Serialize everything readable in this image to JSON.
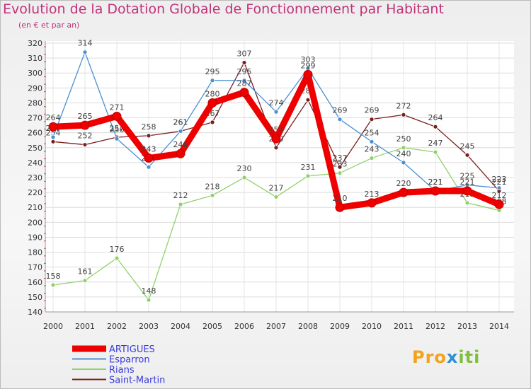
{
  "chart_data": {
    "type": "line",
    "title": "Evolution de la Dotation Globale de Fonctionnement par Habitant",
    "subtitle": "(en € et par an)",
    "xlabel": "",
    "ylabel": "",
    "ylim": [
      140,
      320
    ],
    "yticks": [
      140,
      150,
      160,
      170,
      180,
      190,
      200,
      210,
      220,
      230,
      240,
      250,
      260,
      270,
      280,
      290,
      300,
      310,
      320
    ],
    "categories": [
      "2000",
      "2001",
      "2002",
      "2003",
      "2004",
      "2005",
      "2006",
      "2007",
      "2008",
      "2009",
      "2010",
      "2011",
      "2012",
      "2013",
      "2014"
    ],
    "grid": true,
    "legend_position": "bottom-left",
    "series": [
      {
        "name": "Saint-Martin",
        "color": "#7a1f1f",
        "values": [
          254,
          252,
          257,
          258,
          261,
          267,
          307,
          250,
          282,
          237,
          269,
          272,
          264,
          245,
          221
        ]
      },
      {
        "name": "Rians",
        "color": "#8fd16a",
        "values": [
          158,
          161,
          176,
          148,
          212,
          218,
          230,
          217,
          231,
          233,
          243,
          250,
          247,
          213,
          208
        ]
      },
      {
        "name": "Esparron",
        "color": "#4a8fd0",
        "values": [
          257,
          314,
          256,
          237,
          261,
          295,
          295,
          274,
          303,
          269,
          254,
          240,
          221,
          225,
          223
        ]
      },
      {
        "name": "ARTIGUES",
        "color": "#ee0000",
        "values": [
          264,
          265,
          271,
          243,
          246,
          280,
          287,
          256,
          299,
          210,
          213,
          220,
          221,
          221,
          212
        ]
      }
    ],
    "legend_order": [
      "ARTIGUES",
      "Esparron",
      "Rians",
      "Saint-Martin"
    ]
  },
  "branding": {
    "logo_text_1": "Pro",
    "logo_text_2": "x",
    "logo_text_3": "iti"
  }
}
